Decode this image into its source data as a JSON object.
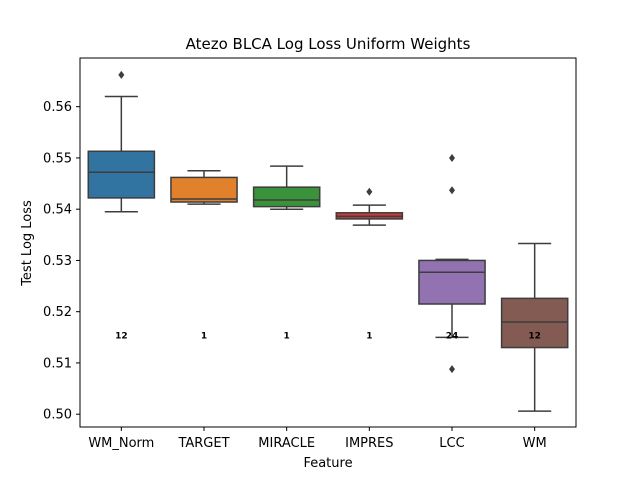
{
  "chart_data": {
    "type": "box",
    "title": "Atezo BLCA Log Loss Uniform Weights",
    "xlabel": "Feature",
    "ylabel": "Test Log Loss",
    "ylim": [
      0.4975,
      0.5695
    ],
    "yticks": [
      0.5,
      0.51,
      0.52,
      0.53,
      0.54,
      0.55,
      0.56
    ],
    "ytick_labels": [
      "0.50",
      "0.51",
      "0.52",
      "0.53",
      "0.54",
      "0.55",
      "0.56"
    ],
    "grid": false,
    "annotation_y": 0.5155,
    "categories": [
      "WM_Norm",
      "TARGET",
      "MIRACLE",
      "IMPRES",
      "LCC",
      "WM"
    ],
    "boxes": [
      {
        "category": "WM_Norm",
        "color": "#3274a1",
        "whisker_low": 0.5395,
        "q1": 0.5422,
        "median": 0.5472,
        "q3": 0.5513,
        "whisker_high": 0.562,
        "outliers": [
          0.5662
        ],
        "annotation": "12"
      },
      {
        "category": "TARGET",
        "color": "#e1812c",
        "whisker_low": 0.541,
        "q1": 0.5414,
        "median": 0.542,
        "q3": 0.5462,
        "whisker_high": 0.5475,
        "outliers": [],
        "annotation": "1"
      },
      {
        "category": "MIRACLE",
        "color": "#3a923a",
        "whisker_low": 0.54,
        "q1": 0.5405,
        "median": 0.5418,
        "q3": 0.5443,
        "whisker_high": 0.5484,
        "outliers": [],
        "annotation": "1"
      },
      {
        "category": "IMPRES",
        "color": "#c03d3e",
        "whisker_low": 0.5369,
        "q1": 0.5381,
        "median": 0.5386,
        "q3": 0.5393,
        "whisker_high": 0.5408,
        "outliers": [
          0.5434
        ],
        "annotation": "1"
      },
      {
        "category": "LCC",
        "color": "#9372b2",
        "whisker_low": 0.515,
        "q1": 0.5215,
        "median": 0.5277,
        "q3": 0.53,
        "whisker_high": 0.5302,
        "outliers": [
          0.55,
          0.5437,
          0.5088
        ],
        "annotation": "24"
      },
      {
        "category": "WM",
        "color": "#845b53",
        "whisker_low": 0.5006,
        "q1": 0.513,
        "median": 0.518,
        "q3": 0.5226,
        "whisker_high": 0.5333,
        "outliers": [],
        "annotation": "12"
      }
    ]
  }
}
